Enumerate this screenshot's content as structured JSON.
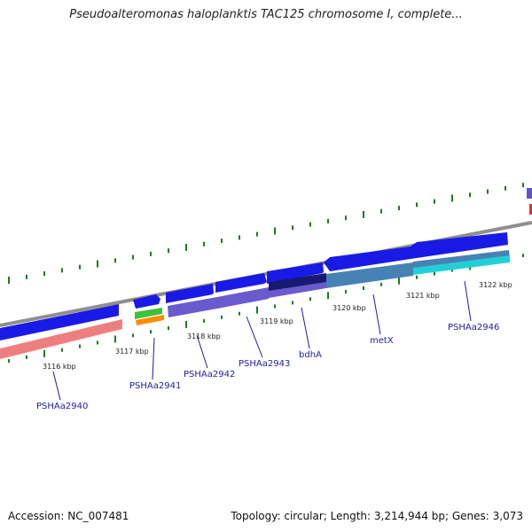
{
  "title": "Pseudoalteromonas haloplanktis TAC125 chromosome I, complete...",
  "footer": {
    "accession": "Accession: NC_007481",
    "summary": "Topology: circular; Length: 3,214,944 bp; Genes: 3,073"
  },
  "colors": {
    "backbone": "#8a8a8a",
    "forward_gene": "#1a1ae6",
    "reverse_gene": "#ee7f80",
    "purple_feature": "#6a5acd",
    "steel_feature": "#4682b4",
    "cyan_feature": "#22cfd6",
    "green_feature": "#3cc23c",
    "orange_feature": "#ff8c00",
    "gc_tick": "#1e7a1e",
    "label": "#1c1ca8"
  },
  "scale_ticks": [
    "3116 kbp",
    "3117 kbp",
    "3118 kbp",
    "3119 kbp",
    "3120 kbp",
    "3121 kbp",
    "3122 kbp"
  ],
  "gene_labels": [
    "PSHAa2940",
    "PSHAa2941",
    "PSHAa2942",
    "PSHAa2943",
    "bdhA",
    "metX",
    "PSHAa2946"
  ]
}
